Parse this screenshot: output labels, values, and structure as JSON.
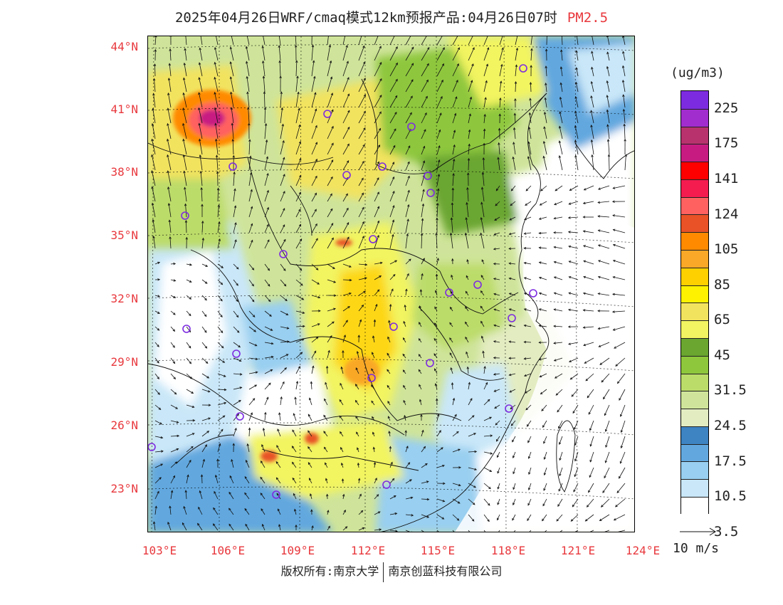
{
  "title": {
    "main": "2025年04月26日WRF/cmaq模式12km预报产品:04月26日07时",
    "variable": "PM2.5"
  },
  "lat_labels": [
    "44°N",
    "41°N",
    "38°N",
    "35°N",
    "32°N",
    "29°N",
    "26°N",
    "23°N"
  ],
  "lon_labels": [
    "103°E",
    "106°E",
    "109°E",
    "112°E",
    "115°E",
    "118°E",
    "121°E",
    "124°E"
  ],
  "legend": {
    "unit": "(ug/m3)",
    "labels": [
      "225",
      "175",
      "141",
      "124",
      "105",
      "85",
      "65",
      "45",
      "31.5",
      "24.5",
      "17.5",
      "10.5",
      "3.5"
    ],
    "colors": [
      "#7d2be0",
      "#a22dcf",
      "#b8326e",
      "#c81b82",
      "#ff0000",
      "#f41b4f",
      "#ff6161",
      "#e85226",
      "#ff8a00",
      "#f9a828",
      "#ffd000",
      "#fff200",
      "#f2e35f",
      "#f2f461",
      "#6aa630",
      "#8ec73c",
      "#bcdc6a",
      "#cfe49a",
      "#e3ecc1",
      "#3e83c2",
      "#62a8df",
      "#99cff0",
      "#c9e7f8",
      "#ffffff"
    ]
  },
  "wind_reference": "10 m/s",
  "copyright": {
    "left": "版权所有:南京大学",
    "right": "南京创蓝科技有限公司"
  },
  "cities": [
    "city"
  ]
}
